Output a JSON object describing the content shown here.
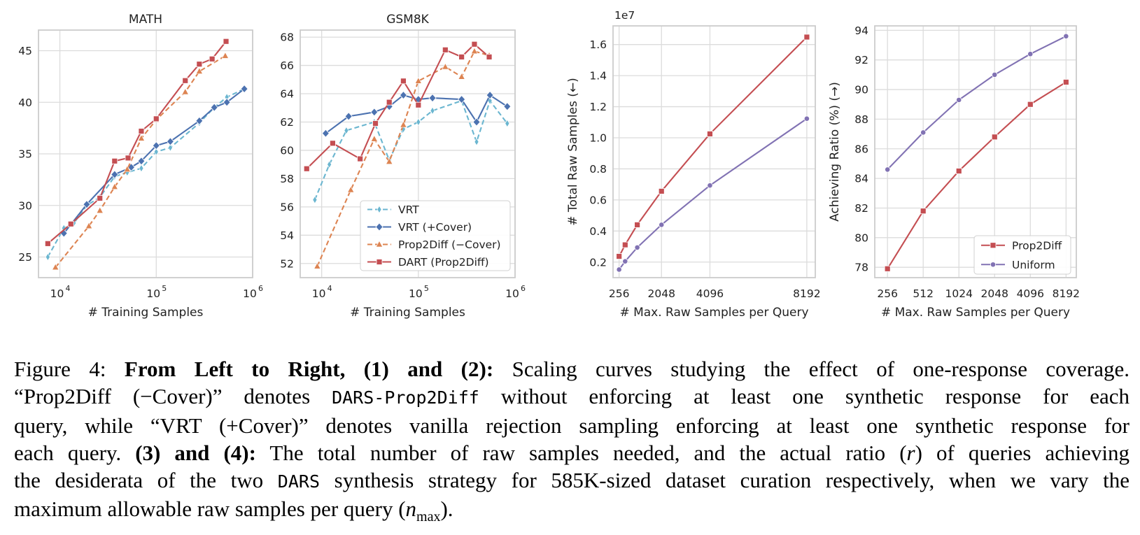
{
  "chart_data": [
    {
      "type": "line",
      "title": "MATH",
      "xlabel": "# Training Samples",
      "ylabel": "",
      "xscale": "log",
      "xlim": [
        6000,
        1000000
      ],
      "ylim": [
        23,
        47
      ],
      "x_ticks": [
        10000,
        100000,
        1000000
      ],
      "x_tick_labels": [
        {
          "base": "10",
          "exp": "4"
        },
        {
          "base": "10",
          "exp": "5"
        },
        {
          "base": "10",
          "exp": "6"
        }
      ],
      "y_ticks": [
        25,
        30,
        35,
        40,
        45
      ],
      "y_tick_labels": [
        "25",
        "30",
        "35",
        "40",
        "45"
      ],
      "grid": true,
      "series": [
        {
          "name": "VRT",
          "color": "#6bb6d0",
          "marker": "diamond-thin",
          "dash": true,
          "x": [
            7500,
            11000,
            14000,
            19000,
            26000,
            37000,
            50000,
            70000,
            100000,
            140000,
            280000,
            400000,
            540000,
            820000
          ],
          "y": [
            25.0,
            27.8,
            28.3,
            30.0,
            30.8,
            32.8,
            33.2,
            33.6,
            35.2,
            35.6,
            38.0,
            39.5,
            40.5,
            41.3
          ]
        },
        {
          "name": "VRT (+Cover)",
          "color": "#4c72b0",
          "marker": "diamond",
          "dash": false,
          "x": [
            11000,
            19000,
            37000,
            55000,
            70000,
            100000,
            140000,
            280000,
            400000,
            540000,
            820000
          ],
          "y": [
            27.3,
            30.1,
            33.0,
            33.7,
            34.3,
            35.8,
            36.2,
            38.2,
            39.5,
            40.0,
            41.3
          ]
        },
        {
          "name": "Prop2Diff (−Cover)",
          "color": "#dd8452",
          "marker": "triangle",
          "dash": true,
          "x": [
            9000,
            20000,
            26000,
            37000,
            50000,
            70000,
            100000,
            200000,
            280000,
            520000
          ],
          "y": [
            24.0,
            28.0,
            29.5,
            31.8,
            33.5,
            36.5,
            38.3,
            41.0,
            43.0,
            44.5
          ]
        },
        {
          "name": "DART (Prop2Diff)",
          "color": "#c44e52",
          "marker": "square",
          "dash": false,
          "x": [
            7500,
            13000,
            26000,
            37000,
            51000,
            70000,
            100000,
            200000,
            280000,
            380000,
            530000
          ],
          "y": [
            26.3,
            28.2,
            30.7,
            34.3,
            34.6,
            37.2,
            38.4,
            42.1,
            43.7,
            44.2,
            45.9
          ]
        }
      ]
    },
    {
      "type": "line",
      "title": "GSM8K",
      "xlabel": "# Training Samples",
      "ylabel": "",
      "xscale": "log",
      "xlim": [
        6000,
        1000000
      ],
      "ylim": [
        51,
        68.5
      ],
      "x_ticks": [
        10000,
        100000,
        1000000
      ],
      "x_tick_labels": [
        {
          "base": "10",
          "exp": "4"
        },
        {
          "base": "10",
          "exp": "5"
        },
        {
          "base": "10",
          "exp": "6"
        }
      ],
      "y_ticks": [
        52,
        54,
        56,
        58,
        60,
        62,
        64,
        66,
        68
      ],
      "y_tick_labels": [
        "52",
        "54",
        "56",
        "58",
        "60",
        "62",
        "64",
        "66",
        "68"
      ],
      "grid": true,
      "legend": "lower-right",
      "series": [
        {
          "name": "VRT",
          "color": "#6bb6d0",
          "marker": "diamond-thin",
          "dash": true,
          "x": [
            8500,
            12000,
            18000,
            35000,
            50000,
            70000,
            100000,
            140000,
            280000,
            400000,
            550000,
            830000
          ],
          "y": [
            56.5,
            59.0,
            61.4,
            62.0,
            59.3,
            61.5,
            62.0,
            62.8,
            63.5,
            60.6,
            63.5,
            61.9
          ]
        },
        {
          "name": "VRT (+Cover)",
          "color": "#4c72b0",
          "marker": "diamond",
          "dash": false,
          "x": [
            11000,
            19000,
            35000,
            50000,
            70000,
            100000,
            140000,
            280000,
            400000,
            550000,
            830000
          ],
          "y": [
            61.2,
            62.4,
            62.7,
            63.1,
            63.9,
            63.6,
            63.7,
            63.6,
            62.0,
            63.9,
            63.1
          ]
        },
        {
          "name": "Prop2Diff (−Cover)",
          "color": "#dd8452",
          "marker": "triangle",
          "dash": true,
          "x": [
            9000,
            20000,
            35000,
            50000,
            70000,
            100000,
            190000,
            280000,
            380000,
            540000
          ],
          "y": [
            51.8,
            57.2,
            60.8,
            59.2,
            61.8,
            64.9,
            65.9,
            65.2,
            67.0,
            66.7
          ]
        },
        {
          "name": "DART (Prop2Diff)",
          "color": "#c44e52",
          "marker": "square",
          "dash": false,
          "x": [
            7000,
            13000,
            25000,
            36000,
            50000,
            70000,
            100000,
            190000,
            280000,
            380000,
            540000
          ],
          "y": [
            58.7,
            60.5,
            59.4,
            61.9,
            63.4,
            64.9,
            63.2,
            67.1,
            66.6,
            67.5,
            66.6
          ]
        }
      ]
    },
    {
      "type": "line",
      "title": "",
      "xlabel": "# Max. Raw Samples per Query",
      "ylabel": "# Total Raw Samples (←)",
      "offset_label": "1e7",
      "xlim": [
        0,
        8550
      ],
      "ylim": [
        0.1,
        1.72
      ],
      "x_ticks": [
        256,
        2048,
        4096,
        8192
      ],
      "x_tick_labels": [
        "256",
        "2048",
        "4096",
        "8192"
      ],
      "y_ticks": [
        0.2,
        0.4,
        0.6,
        0.8,
        1.0,
        1.2,
        1.4,
        1.6
      ],
      "y_tick_labels": [
        "0.2",
        "0.4",
        "0.6",
        "0.8",
        "1.0",
        "1.2",
        "1.4",
        "1.6"
      ],
      "grid": true,
      "series": [
        {
          "name": "Prop2Diff",
          "color": "#c44e52",
          "marker": "square",
          "x": [
            256,
            512,
            1024,
            2048,
            4096,
            8192
          ],
          "y": [
            0.237,
            0.311,
            0.44,
            0.656,
            1.025,
            1.648
          ]
        },
        {
          "name": "Uniform",
          "color": "#8172b3",
          "marker": "circle",
          "x": [
            256,
            512,
            1024,
            2048,
            4096,
            8192
          ],
          "y": [
            0.152,
            0.205,
            0.294,
            0.44,
            0.693,
            1.123
          ]
        }
      ]
    },
    {
      "type": "line",
      "title": "",
      "xlabel": "# Max. Raw Samples per Query",
      "ylabel": "Achieving Ratio (%) (→)",
      "xscale": "log2",
      "xlim": [
        200,
        10000
      ],
      "ylim": [
        77.3,
        94.3
      ],
      "x_ticks": [
        256,
        512,
        1024,
        2048,
        4096,
        8192
      ],
      "x_tick_labels": [
        "256",
        "512",
        "1024",
        "2048",
        "4096",
        "8192"
      ],
      "y_ticks": [
        78,
        80,
        82,
        84,
        86,
        88,
        90,
        92,
        94
      ],
      "y_tick_labels": [
        "78",
        "80",
        "82",
        "84",
        "86",
        "88",
        "90",
        "92",
        "94"
      ],
      "grid": true,
      "legend": "lower-right",
      "series": [
        {
          "name": "Prop2Diff",
          "color": "#c44e52",
          "marker": "square",
          "x": [
            256,
            512,
            1024,
            2048,
            4096,
            8192
          ],
          "y": [
            77.9,
            81.8,
            84.5,
            86.8,
            89.0,
            90.5
          ]
        },
        {
          "name": "Uniform",
          "color": "#8172b3",
          "marker": "circle",
          "x": [
            256,
            512,
            1024,
            2048,
            4096,
            8192
          ],
          "y": [
            84.6,
            87.1,
            89.3,
            91.0,
            92.4,
            93.6
          ]
        }
      ]
    }
  ],
  "caption": {
    "l1_a": "Figure 4: ",
    "l1_b": "From Left to Right, (1) and (2):",
    "l1_c": " Scaling curves studying the effect of one-response coverage.",
    "l2_a": "“Prop2Diff (−Cover)” denotes ",
    "l2_code": "DARS-Prop2Diff",
    "l2_b": " without enforcing at least one synthetic response for each",
    "l3": "query, while “VRT (+Cover)” denotes vanilla rejection sampling enforcing at least one synthetic response for",
    "l4_a": "each query. ",
    "l4_b": "(3) and (4):",
    "l4_c": " The total number of raw samples needed, and the actual ratio (",
    "l4_r": "r",
    "l4_d": ") of queries achieving",
    "l5_a": "the desiderata of the two ",
    "l5_code": "DARS",
    "l5_b": " synthesis strategy for 585K-sized dataset curation respectively, when we vary the",
    "l6_a": "maximum allowable raw samples per query (",
    "l6_n": "n",
    "l6_sub": "max",
    "l6_b": ")."
  }
}
